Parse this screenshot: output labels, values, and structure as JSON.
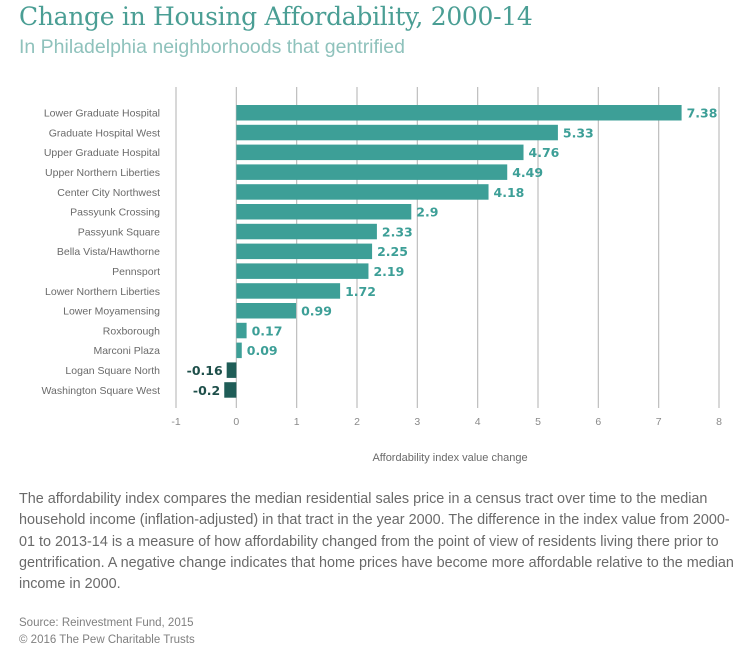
{
  "header": {
    "title": "Change in Housing Affordability, 2000-14",
    "subtitle": "In Philadelphia neighborhoods that gentrified"
  },
  "colors": {
    "positive_bar": "#3d9f97",
    "negative_bar": "#1f5d57",
    "positive_label": "#3d9f97",
    "negative_label": "#1e4f4a",
    "grid": "#bdbdbd",
    "category_text": "#6a6a6a",
    "tick_text": "#8a8a8a"
  },
  "chart_data": {
    "type": "bar",
    "orientation": "horizontal",
    "title": "Change in Housing Affordability, 2000-14",
    "subtitle": "In Philadelphia neighborhoods that gentrified",
    "xlabel": "Affordability index value change",
    "ylabel": "",
    "categories": [
      "Lower Graduate Hospital",
      "Graduate Hospital West",
      "Upper Graduate Hospital",
      "Upper Northern Liberties",
      "Center City Northwest",
      "Passyunk Crossing",
      "Passyunk Square",
      "Bella Vista/Hawthorne",
      "Pennsport",
      "Lower Northern Liberties",
      "Lower Moyamensing",
      "Roxborough",
      "Marconi Plaza",
      "Logan Square North",
      "Washington Square West"
    ],
    "values": [
      7.38,
      5.33,
      4.76,
      4.49,
      4.18,
      2.9,
      2.33,
      2.25,
      2.19,
      1.72,
      0.99,
      0.17,
      0.09,
      -0.16,
      -0.2
    ],
    "data_labels": [
      "7.38",
      "5.33",
      "4.76",
      "4.49",
      "4.18",
      "2.9",
      "2.33",
      "2.25",
      "2.19",
      "1.72",
      "0.99",
      "0.17",
      "0.09",
      "-0.16",
      "-0.2"
    ],
    "xlim": [
      -1,
      8
    ],
    "xticks": [
      -1,
      0,
      1,
      2,
      3,
      4,
      5,
      6,
      7,
      8
    ],
    "xtick_labels": [
      "-1",
      "0",
      "1",
      "2",
      "3",
      "4",
      "5",
      "6",
      "7",
      "8"
    ],
    "grid": "vertical",
    "legend": "none"
  },
  "footer": {
    "description": "The affordability index compares the median residential sales price in a census tract over time to the median household income (inflation-adjusted) in that tract in the year 2000. The difference in the index value from 2000-01 to 2013-14 is a measure of how affordability changed from the point of view of residents living there prior to gentrification. A negative change indicates that home prices have become more affordable relative to the median income in 2000.",
    "source": "Source: Reinvestment Fund, 2015",
    "copyright": "© 2016 The Pew Charitable Trusts"
  }
}
